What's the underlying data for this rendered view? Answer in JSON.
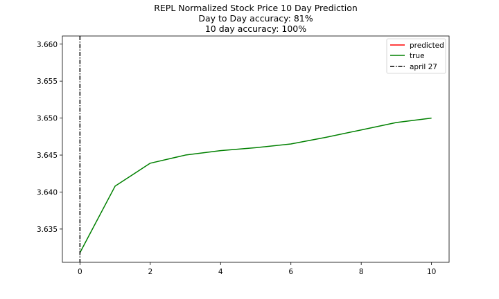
{
  "chart_data": {
    "type": "line",
    "title_lines": [
      "REPL Normalized Stock Price 10 Day Prediction",
      "Day to Day accuracy: 81%",
      "10 day accuracy: 100%"
    ],
    "xlabel": "",
    "ylabel": "",
    "xlim": [
      -0.5,
      10.5
    ],
    "ylim": [
      3.6305,
      3.6611
    ],
    "x_ticks": [
      0,
      2,
      4,
      6,
      8,
      10
    ],
    "x_tick_labels": [
      "0",
      "2",
      "4",
      "6",
      "8",
      "10"
    ],
    "y_ticks": [
      3.635,
      3.64,
      3.645,
      3.65,
      3.655,
      3.66
    ],
    "y_tick_labels": [
      "3.635",
      "3.640",
      "3.645",
      "3.650",
      "3.655",
      "3.660"
    ],
    "grid": false,
    "legend_position": "top-right",
    "series": [
      {
        "name": "predicted",
        "color": "#ff0000",
        "style": "solid",
        "x": [],
        "y": []
      },
      {
        "name": "true",
        "color": "#008000",
        "style": "solid",
        "x": [
          0,
          1,
          2,
          3,
          4,
          5,
          6,
          7,
          8,
          9,
          10
        ],
        "y": [
          3.6318,
          3.6408,
          3.6439,
          3.645,
          3.6456,
          3.646,
          3.6465,
          3.6474,
          3.6484,
          3.6494,
          3.65
        ]
      },
      {
        "name": "april 27",
        "color": "#000000",
        "style": "dashdot",
        "vline_x": 0
      }
    ]
  }
}
